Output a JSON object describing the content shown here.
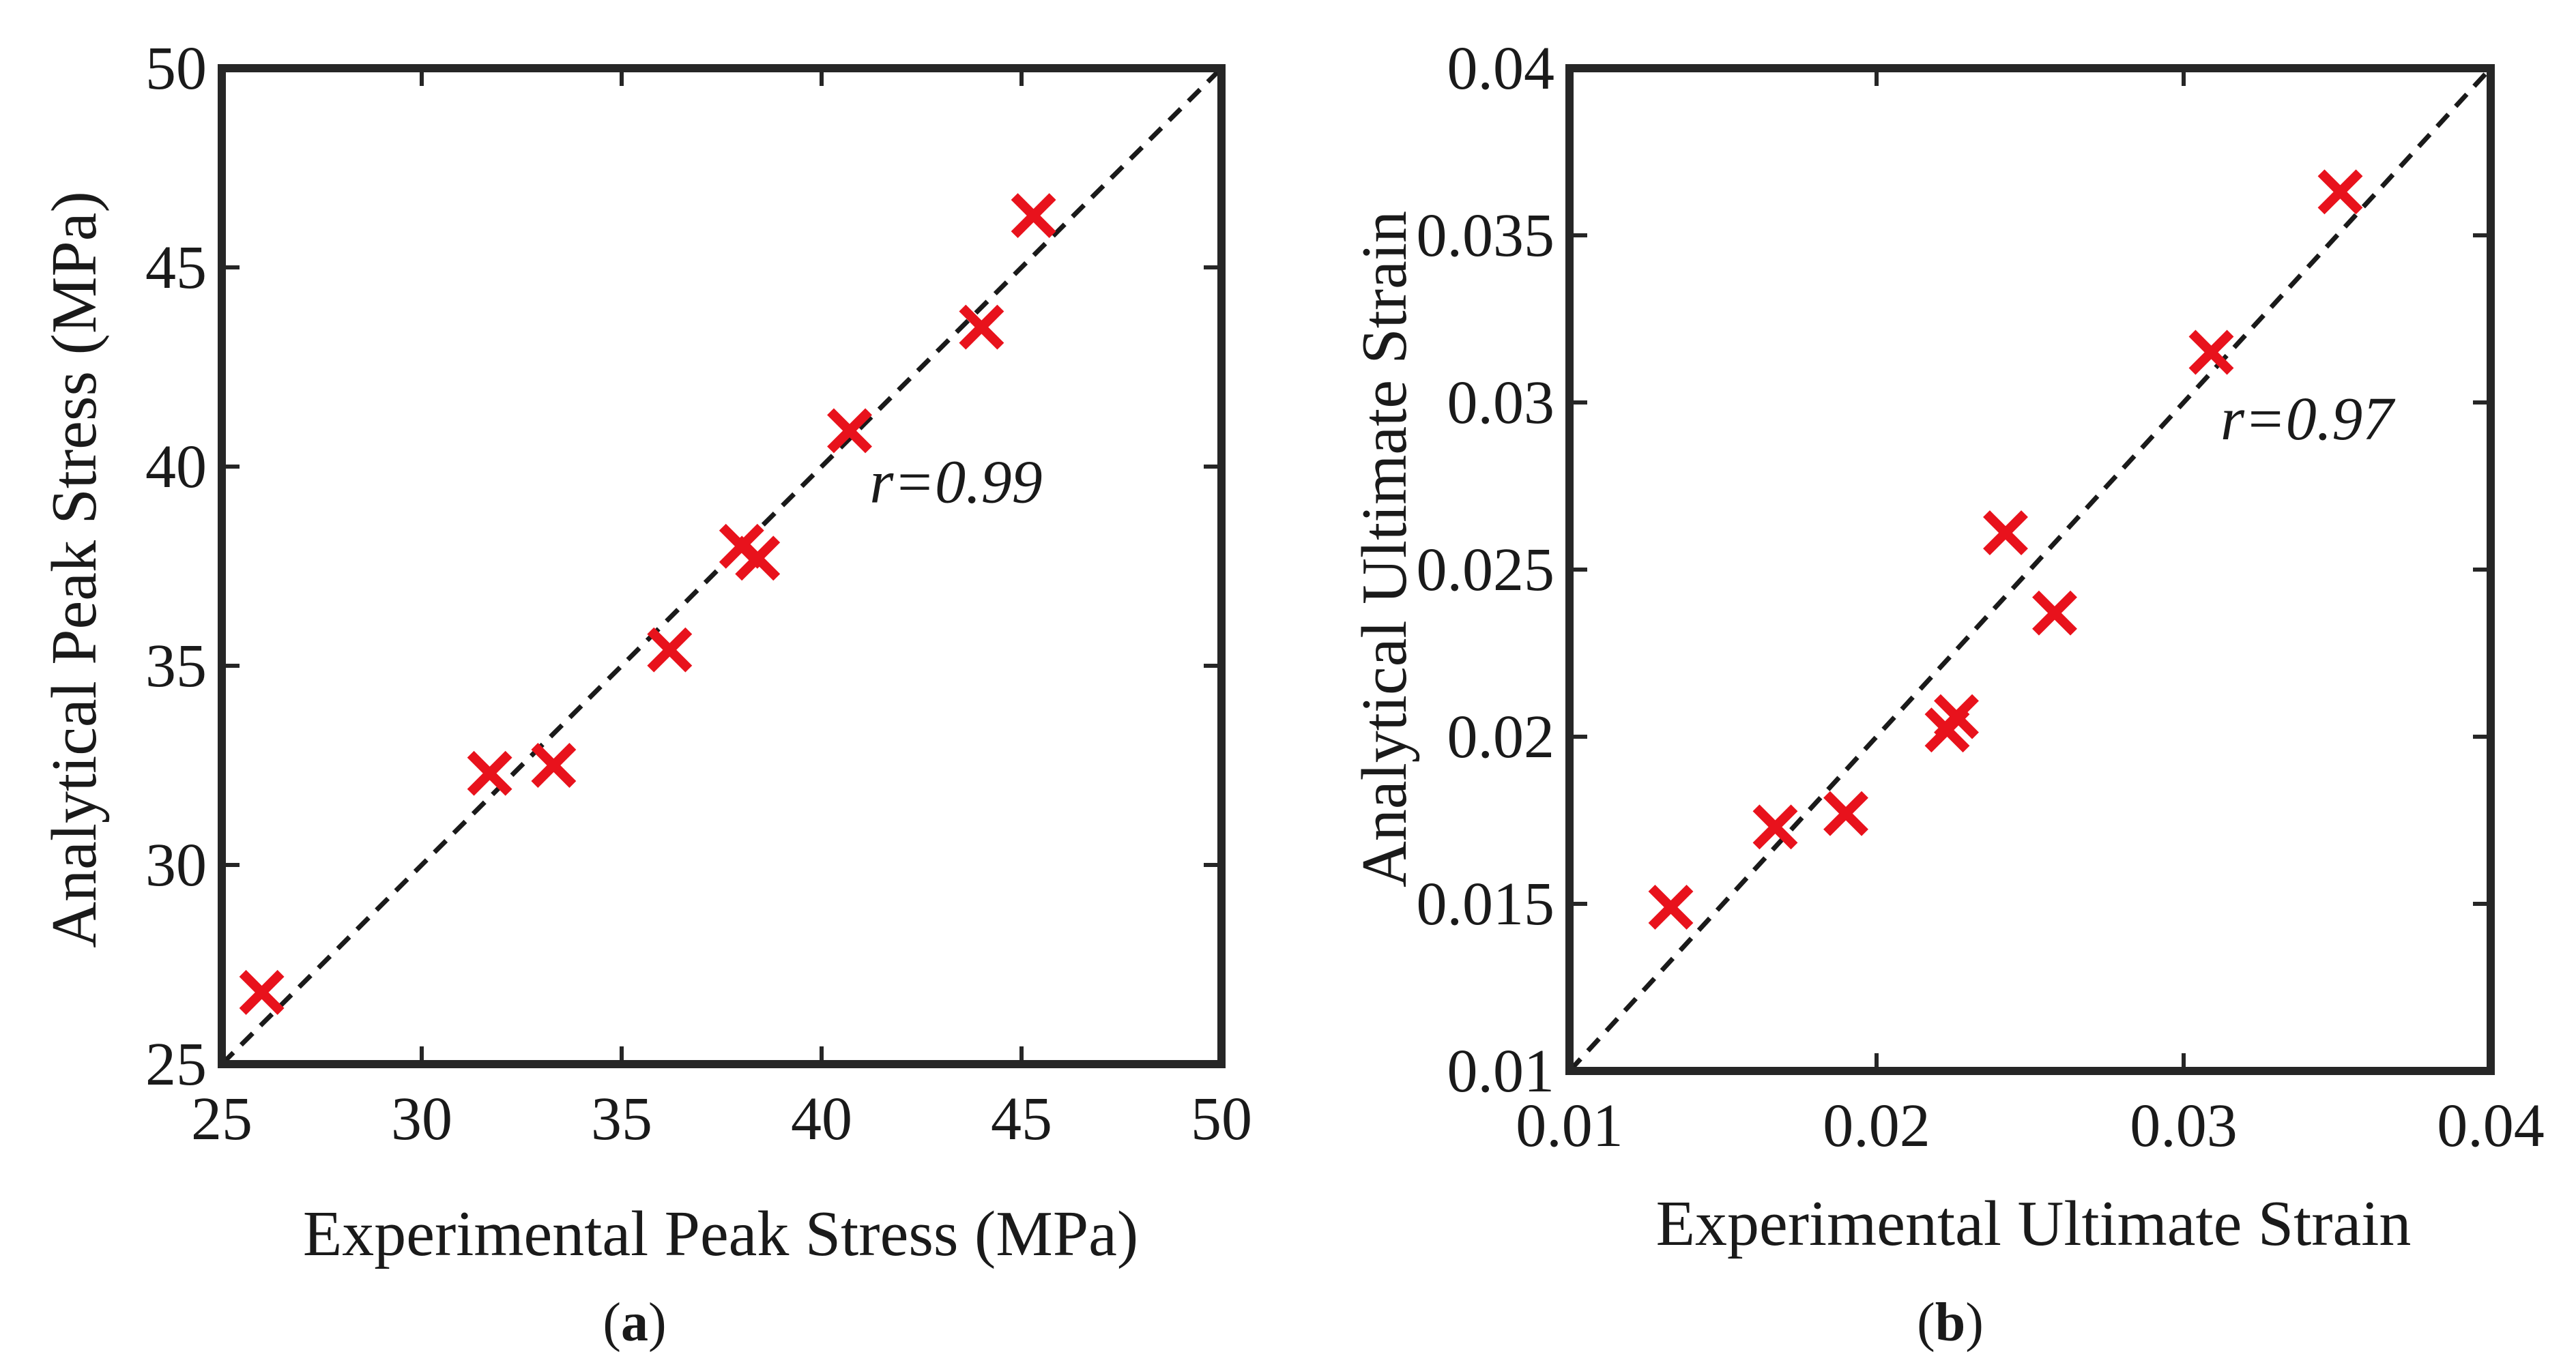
{
  "chart_data": [
    {
      "type": "scatter",
      "panel_label_open": "(",
      "panel_label_letter": "a",
      "panel_label_close": ")",
      "xlabel": "Experimental Peak Stress (MPa)",
      "ylabel": "Analytical Peak Stress (MPa)",
      "xlim": [
        25,
        50
      ],
      "ylim": [
        25,
        50
      ],
      "xticks": [
        25,
        30,
        35,
        40,
        45,
        50
      ],
      "yticks": [
        25,
        30,
        35,
        40,
        45,
        50
      ],
      "xtick_labels": [
        "25",
        "30",
        "35",
        "40",
        "45",
        "50"
      ],
      "ytick_labels": [
        "25",
        "30",
        "35",
        "40",
        "45",
        "50"
      ],
      "annotation": "r=0.99",
      "annotation_at": [
        41.2,
        39.1
      ],
      "reference_line": "y=x (dashed)",
      "marker": "x",
      "points": [
        {
          "x": 26.0,
          "y": 26.8
        },
        {
          "x": 31.7,
          "y": 32.3
        },
        {
          "x": 33.3,
          "y": 32.5
        },
        {
          "x": 36.2,
          "y": 35.4
        },
        {
          "x": 38.0,
          "y": 38.0
        },
        {
          "x": 38.4,
          "y": 37.7
        },
        {
          "x": 40.7,
          "y": 40.9
        },
        {
          "x": 44.0,
          "y": 43.5
        },
        {
          "x": 45.3,
          "y": 46.3
        }
      ]
    },
    {
      "type": "scatter",
      "panel_label_open": "(",
      "panel_label_letter": "b",
      "panel_label_close": ")",
      "xlabel": "Experimental Ultimate Strain",
      "ylabel": "Analytical Ultimate Strain",
      "xlim": [
        0.01,
        0.04
      ],
      "ylim": [
        0.01,
        0.04
      ],
      "xticks": [
        0.01,
        0.02,
        0.03,
        0.04
      ],
      "yticks": [
        0.01,
        0.015,
        0.02,
        0.025,
        0.03,
        0.035,
        0.04
      ],
      "xtick_labels": [
        "0.01",
        "0.02",
        "0.03",
        "0.04"
      ],
      "ytick_labels": [
        "0.01",
        "0.015",
        "0.02",
        "0.025",
        "0.03",
        "0.035",
        "0.04"
      ],
      "annotation": "r=0.97",
      "annotation_at": [
        0.0312,
        0.0289
      ],
      "reference_line": "y=x (dashed)",
      "marker": "x",
      "points": [
        {
          "x": 0.0133,
          "y": 0.0149
        },
        {
          "x": 0.0167,
          "y": 0.0173
        },
        {
          "x": 0.019,
          "y": 0.0177
        },
        {
          "x": 0.0223,
          "y": 0.0202
        },
        {
          "x": 0.0226,
          "y": 0.0206
        },
        {
          "x": 0.0242,
          "y": 0.0261
        },
        {
          "x": 0.0258,
          "y": 0.0237
        },
        {
          "x": 0.0309,
          "y": 0.0315
        },
        {
          "x": 0.0351,
          "y": 0.0363
        }
      ]
    }
  ],
  "colors": {
    "marker": "#e8121c",
    "axis": "#262626",
    "reference_line": "#1a1a1a"
  }
}
